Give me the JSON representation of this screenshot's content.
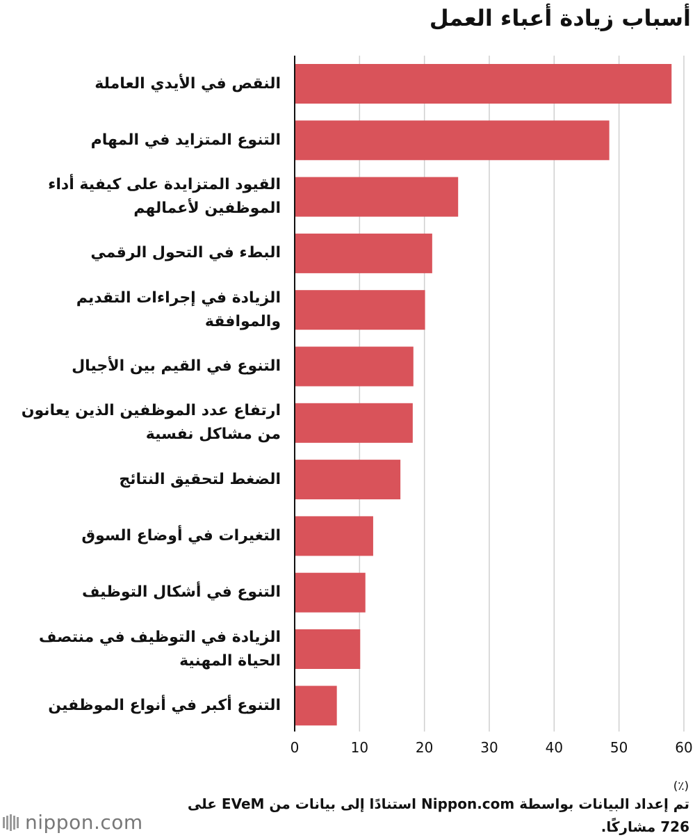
{
  "header": {
    "title": "أسباب زيادة أعباء العمل"
  },
  "chart_data": {
    "type": "bar",
    "orientation": "horizontal",
    "title": "أسباب زيادة أعباء العمل",
    "xlabel": "",
    "ylabel": "",
    "unit_label": "(٪)",
    "xlim": [
      0,
      60
    ],
    "ticks": [
      0,
      10,
      20,
      30,
      40,
      50,
      60
    ],
    "grid": true,
    "bar_color": "#d9535a",
    "categories": [
      "النقص في الأيدي العاملة",
      "التنوع المتزايد في المهام",
      "القيود المتزايدة على كيفية أداء الموظفين لأعمالهم",
      "البطء في التحول الرقمي",
      "الزيادة في إجراءات التقديم والموافقة",
      "التنوع في القيم بين الأجيال",
      "ارتفاع عدد الموظفين الذين يعانون من مشاكل نفسية",
      "الضغط لتحقيق النتائج",
      "التغيرات في أوضاع السوق",
      "التنوع في أشكال التوظيف",
      "الزيادة في التوظيف في منتصف الحياة المهنية",
      "التنوع أكبر في أنواع الموظفين"
    ],
    "values": [
      58.1,
      48.5,
      25.2,
      21.2,
      20.1,
      18.3,
      18.2,
      16.3,
      12.1,
      10.9,
      10.1,
      6.5
    ]
  },
  "footer": {
    "source": "تم إعداد البيانات بواسطة Nippon.com استنادًا إلى بيانات من EVeM على 726 مشاركًا.",
    "logo_text": "nippon.com"
  }
}
